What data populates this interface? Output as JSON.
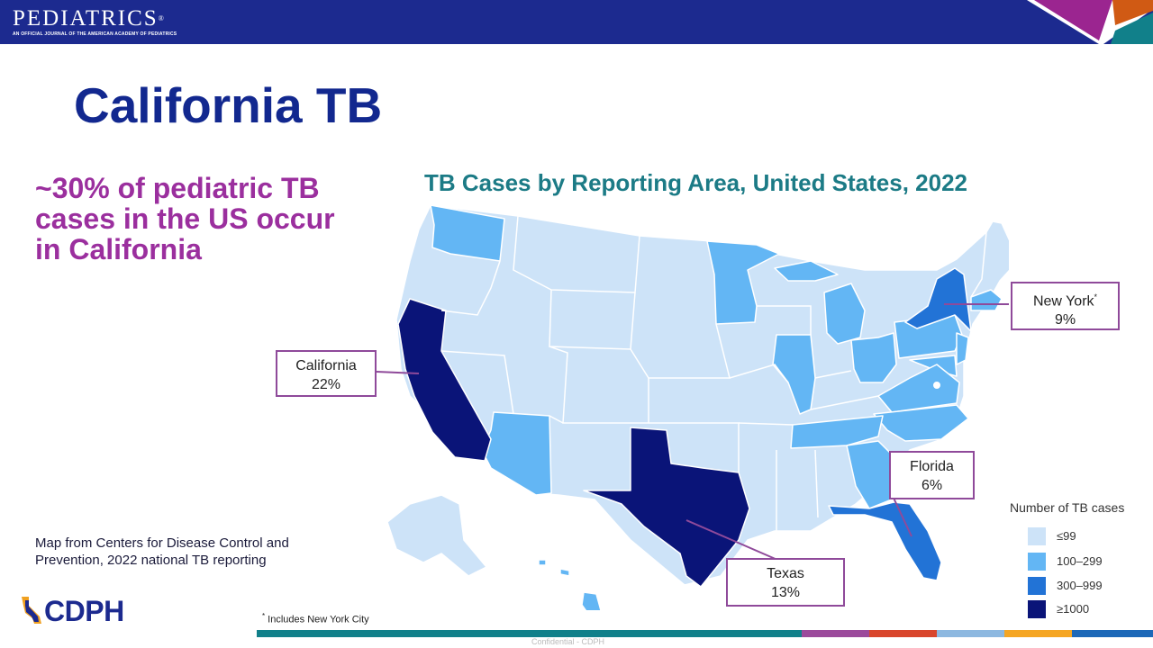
{
  "header": {
    "logo_text": "PEDIATRICS",
    "registered_mark": "®",
    "logo_subtitle": "AN OFFICIAL JOURNAL OF THE AMERICAN ACADEMY OF PEDIATRICS",
    "bar_color": "#1c2a8f"
  },
  "slide": {
    "title": "California TB",
    "claim": "~30% of pediatric TB cases in the US occur in California",
    "source": "Map from Centers for Disease Control and Prevention, 2022 national TB reporting",
    "org_name": "CDPH",
    "footnote_mark": "*",
    "footnote": " Includes New York City",
    "confidential_text": "Confidential - CDPH"
  },
  "map": {
    "title": "TB Cases by Reporting Area, United States, 2022",
    "legend_title": "Number of TB cases",
    "legend": [
      {
        "label": "≤99",
        "color": "#cde3f8"
      },
      {
        "label": "100–299",
        "color": "#63b6f4"
      },
      {
        "label": "300–999",
        "color": "#2273d6"
      },
      {
        "label": "≥1000",
        "color": "#0a1478"
      }
    ],
    "callouts": {
      "california": {
        "name": "California",
        "pct": "22%"
      },
      "new_york": {
        "name": "New York",
        "mark": "*",
        "pct": "9%"
      },
      "florida": {
        "name": "Florida",
        "pct": "6%"
      },
      "texas": {
        "name": "Texas",
        "pct": "13%"
      }
    }
  },
  "colors": {
    "title": "#12288f",
    "claim": "#9b2f9e",
    "map_title": "#1c7b86",
    "callout_border": "#8f4a9a"
  }
}
